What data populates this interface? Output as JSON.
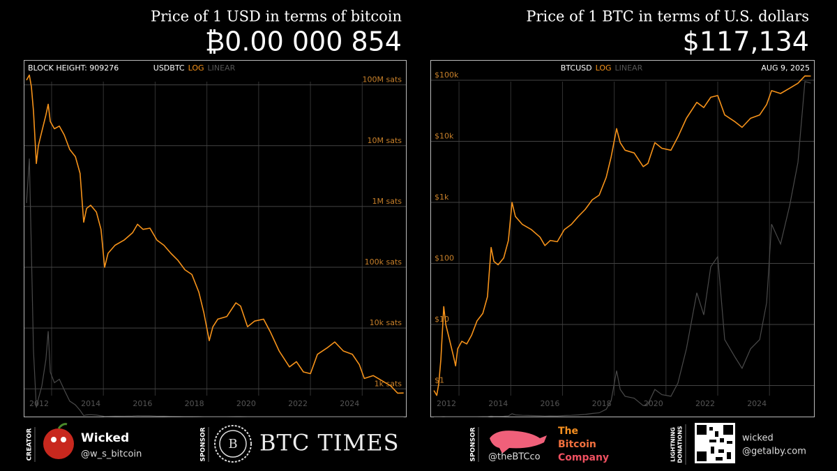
{
  "chart_data": [
    {
      "type": "line",
      "title": "Price of 1 USD in terms of bitcoin",
      "subtitle": "₿0.00 000 854",
      "label": "USDBTC",
      "scale_options": [
        "LOG",
        "LINEAR"
      ],
      "active_scale": "LOG",
      "corner_note": "BLOCK HEIGHT: 909276",
      "log_scale": true,
      "ytick_side": "right",
      "grid": true,
      "x": [
        2011.03,
        2011.14,
        2011.22,
        2011.3,
        2011.41,
        2011.49,
        2011.62,
        2011.78,
        2011.87,
        2011.95,
        2012.11,
        2012.3,
        2012.49,
        2012.7,
        2012.92,
        2013.1,
        2013.24,
        2013.35,
        2013.51,
        2013.73,
        2013.91,
        2014.05,
        2014.18,
        2014.45,
        2014.8,
        2015.13,
        2015.32,
        2015.53,
        2015.8,
        2016.07,
        2016.34,
        2016.61,
        2016.88,
        2017.15,
        2017.42,
        2017.69,
        2017.88,
        2018.09,
        2018.23,
        2018.42,
        2018.77,
        2019.12,
        2019.3,
        2019.57,
        2019.84,
        2020.19,
        2020.46,
        2020.79,
        2021.19,
        2021.46,
        2021.73,
        2022,
        2022.27,
        2022.67,
        2022.94,
        2023.27,
        2023.62,
        2023.89,
        2024.08,
        2024.43,
        2024.78,
        2025.1,
        2025.37,
        2025.6
      ],
      "series": [
        {
          "color": "#f7931a",
          "values": [
            120000000,
            145000000,
            93000000,
            37000000,
            5100000,
            10000000,
            17000000,
            32000000,
            48000000,
            25000000,
            19000000,
            21000000,
            15000000,
            8700000,
            6600000,
            3500000,
            550000,
            930000,
            1050000,
            810000,
            420000,
            100000,
            170000,
            230000,
            280000,
            370000,
            510000,
            420000,
            440000,
            280000,
            230000,
            170000,
            130000,
            91000,
            76000,
            39000,
            18000,
            6200,
            10500,
            14000,
            15500,
            26000,
            23000,
            10500,
            13000,
            14000,
            8500,
            4200,
            2300,
            2800,
            1900,
            1780,
            3700,
            4800,
            5900,
            4200,
            3700,
            2500,
            1480,
            1650,
            1350,
            1120,
            850,
            854
          ]
        }
      ],
      "overlay_color": "#4a4a4a",
      "y2lim": [
        0,
        200000000
      ],
      "xlim": [
        2010.95,
        2025.69
      ],
      "xticks": [
        2012,
        2014,
        2016,
        2018,
        2020,
        2022,
        2024
      ],
      "ylim": [
        350,
        250000000
      ],
      "yticks": [
        {
          "value": 1000,
          "label": "1k sats"
        },
        {
          "value": 10000,
          "label": "10k sats"
        },
        {
          "value": 100000,
          "label": "100k sats"
        },
        {
          "value": 1000000,
          "label": "1M sats"
        },
        {
          "value": 10000000,
          "label": "10M sats"
        },
        {
          "value": 100000000,
          "label": "100M sats"
        }
      ]
    },
    {
      "type": "line",
      "title": "Price of 1 BTC in terms of U.S. dollars",
      "subtitle": "$117,134",
      "label": "BTCUSD",
      "scale_options": [
        "LOG",
        "LINEAR"
      ],
      "active_scale": "LOG",
      "corner_note": "AUG 9, 2025",
      "log_scale": true,
      "ytick_side": "left",
      "grid": true,
      "x": [
        2011.03,
        2011.14,
        2011.22,
        2011.3,
        2011.41,
        2011.49,
        2011.62,
        2011.78,
        2011.87,
        2011.95,
        2012.11,
        2012.3,
        2012.49,
        2012.7,
        2012.92,
        2013.1,
        2013.24,
        2013.35,
        2013.51,
        2013.73,
        2013.91,
        2014.05,
        2014.18,
        2014.45,
        2014.8,
        2015.13,
        2015.32,
        2015.53,
        2015.8,
        2016.07,
        2016.34,
        2016.61,
        2016.88,
        2017.15,
        2017.42,
        2017.69,
        2017.88,
        2018.09,
        2018.23,
        2018.42,
        2018.77,
        2019.12,
        2019.3,
        2019.57,
        2019.84,
        2020.19,
        2020.46,
        2020.79,
        2021.19,
        2021.46,
        2021.73,
        2022,
        2022.27,
        2022.67,
        2022.94,
        2023.27,
        2023.62,
        2023.89,
        2024.08,
        2024.43,
        2024.78,
        2025.1,
        2025.37,
        2025.6
      ],
      "series": [
        {
          "color": "#f7931a",
          "values": [
            0.83,
            0.69,
            1.08,
            2.7,
            19.6,
            10,
            5.9,
            3.1,
            2.1,
            4,
            5.3,
            4.8,
            6.7,
            11.5,
            15.2,
            28.6,
            182,
            108,
            95,
            123,
            238,
            1000,
            588,
            435,
            357,
            270,
            196,
            238,
            227,
            357,
            435,
            588,
            769,
            1099,
            1316,
            2564,
            5556,
            16129,
            9524,
            7143,
            6452,
            3846,
            4348,
            9524,
            7692,
            7143,
            11765,
            23810,
            43478,
            35714,
            52632,
            56180,
            27027,
            20833,
            16949,
            23810,
            27027,
            40000,
            67568,
            60606,
            74074,
            89286,
            117647,
            117134
          ]
        }
      ],
      "overlay_color": "#4a4a4a",
      "y2lim": [
        0,
        125000
      ],
      "xlim": [
        2010.92,
        2025.72
      ],
      "xticks": [
        2012,
        2014,
        2016,
        2018,
        2020,
        2022,
        2024
      ],
      "ylim": [
        0.31,
        209000
      ],
      "yticks": [
        {
          "value": 1,
          "label": "$1"
        },
        {
          "value": 10,
          "label": "$10"
        },
        {
          "value": 100,
          "label": "$100"
        },
        {
          "value": 1000,
          "label": "$1k"
        },
        {
          "value": 10000,
          "label": "$10k"
        },
        {
          "value": 100000,
          "label": "$100k"
        }
      ]
    }
  ],
  "footer": {
    "creator": {
      "role": "CREATOR",
      "name": "Wicked",
      "handle": "@w_s_bitcoin"
    },
    "sponsor1": {
      "role": "SPONSOR",
      "name": "BTC TIMES"
    },
    "sponsor2": {
      "role": "SPONSOR",
      "handle": "@theBTCco",
      "name_lines": [
        "The",
        "Bitcoin",
        "Company"
      ]
    },
    "donations": {
      "role_lines": [
        "LIGHTNING",
        "DONATIONS"
      ],
      "address_lines": [
        "wicked",
        "@getalby.com"
      ]
    }
  }
}
